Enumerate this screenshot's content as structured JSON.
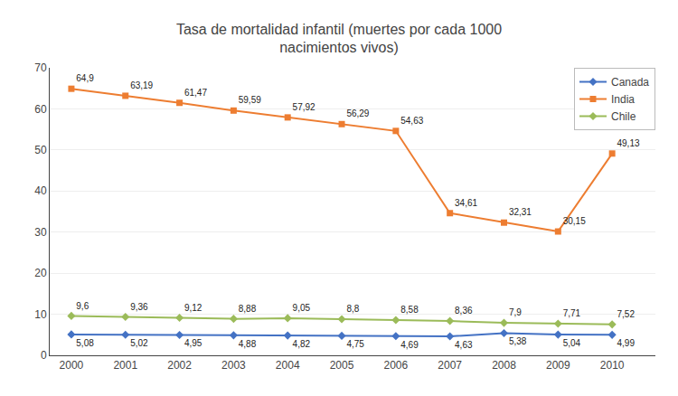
{
  "chart_data": {
    "type": "line",
    "title": "Tasa de mortalidad infantil (muertes por cada 1000\nnacimientos vivos)",
    "x": [
      2000,
      2001,
      2002,
      2003,
      2004,
      2005,
      2006,
      2007,
      2008,
      2009,
      2010
    ],
    "series": [
      {
        "name": "Canada",
        "color": "#4472C4",
        "marker": "diamond",
        "values": [
          5.08,
          5.02,
          4.95,
          4.88,
          4.82,
          4.75,
          4.69,
          4.63,
          5.38,
          5.04,
          4.99
        ],
        "value_labels": [
          "5,08",
          "5,02",
          "4,95",
          "4,88",
          "4,82",
          "4,75",
          "4,69",
          "4,63",
          "5,38",
          "5,04",
          "4,99"
        ]
      },
      {
        "name": "India",
        "color": "#ED7D31",
        "marker": "square",
        "values": [
          64.9,
          63.19,
          61.47,
          59.59,
          57.92,
          56.29,
          54.63,
          34.61,
          32.31,
          30.15,
          49.13
        ],
        "value_labels": [
          "64,9",
          "63,19",
          "61,47",
          "59,59",
          "57,92",
          "56,29",
          "54,63",
          "34,61",
          "32,31",
          "30,15",
          "49,13"
        ]
      },
      {
        "name": "Chile",
        "color": "#9BBB59",
        "marker": "diamond",
        "values": [
          9.6,
          9.36,
          9.12,
          8.88,
          9.05,
          8.8,
          8.58,
          8.36,
          7.9,
          7.71,
          7.52
        ],
        "value_labels": [
          "9,6",
          "9,36",
          "9,12",
          "8,88",
          "9,05",
          "8,8",
          "8,58",
          "8,36",
          "7,9",
          "7,71",
          "7,52"
        ]
      }
    ],
    "xlim": [
      1999.6,
      2010.8
    ],
    "xticks": [
      2000,
      2001,
      2002,
      2003,
      2004,
      2005,
      2006,
      2007,
      2008,
      2009,
      2010
    ],
    "ylim": [
      0,
      70
    ],
    "yticks": [
      0,
      10,
      20,
      30,
      40,
      50,
      60,
      70
    ],
    "grid": "y",
    "legend": "upper right",
    "data_labels": true
  }
}
